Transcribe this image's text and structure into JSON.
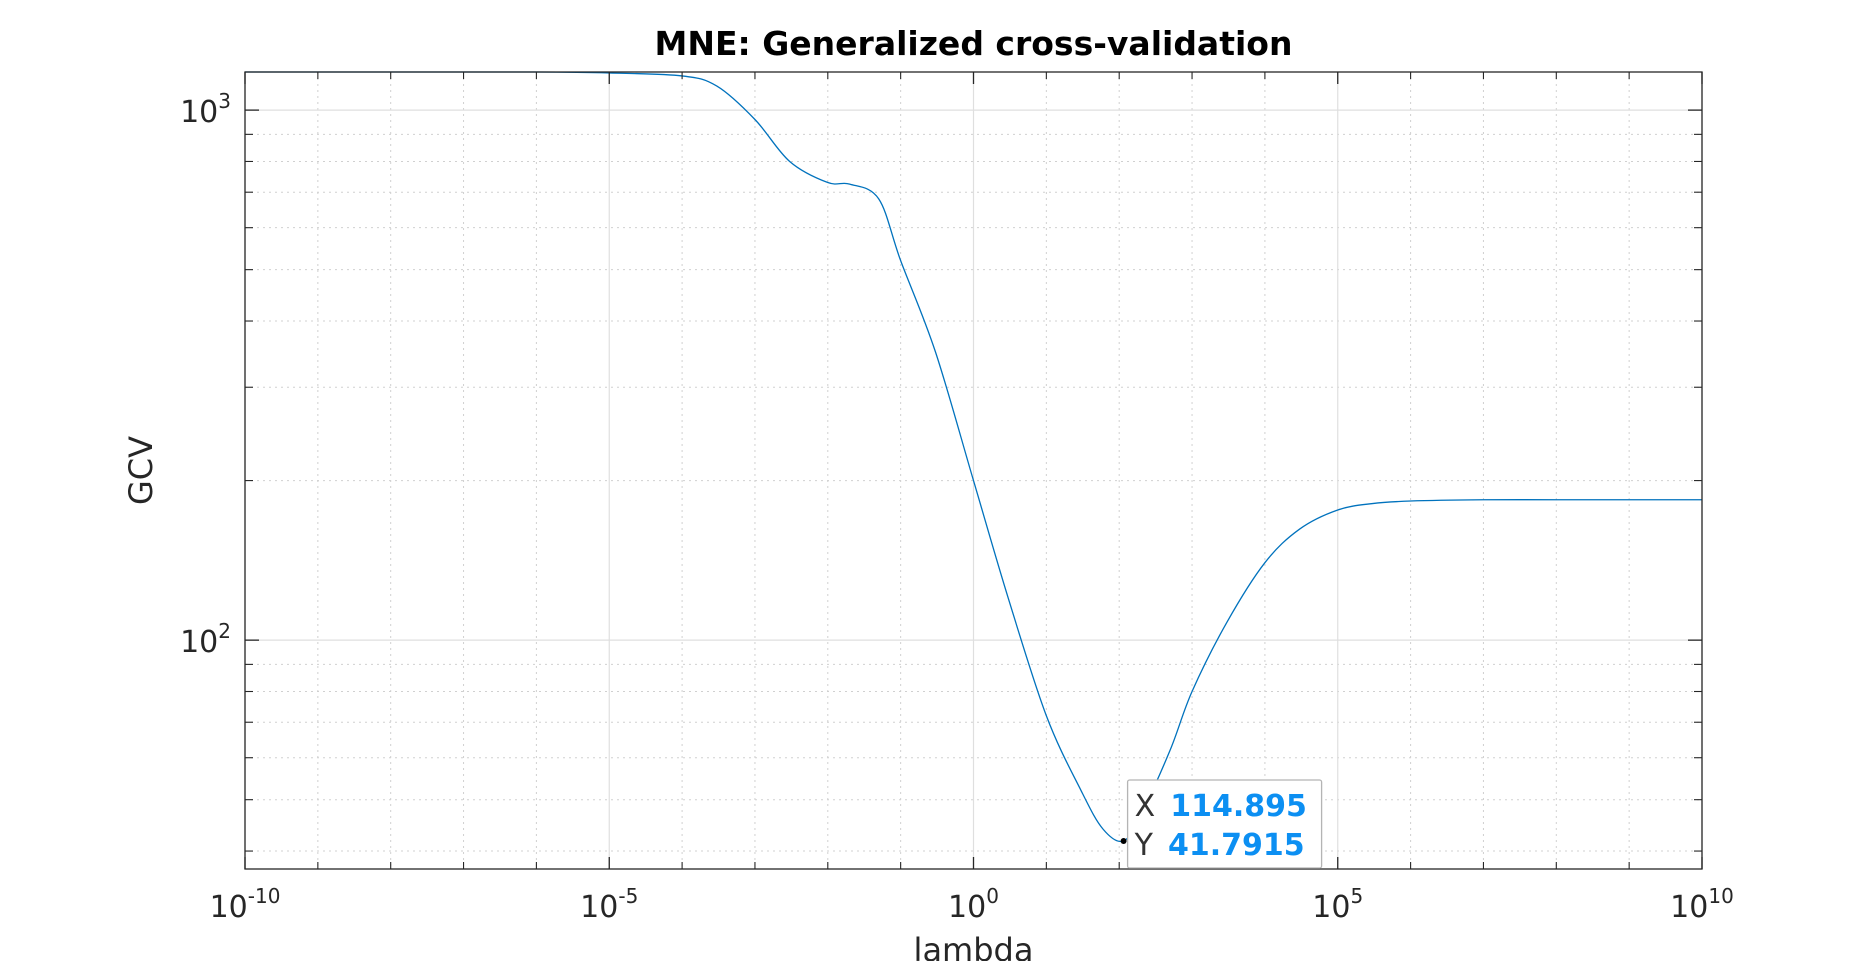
{
  "chart_data": {
    "type": "line",
    "title": "MNE: Generalized cross-validation",
    "xlabel": "lambda",
    "ylabel": "GCV",
    "xscale": "log",
    "yscale": "log",
    "xlim": [
      1e-10,
      10000000000.0
    ],
    "ylim": [
      37,
      1180
    ],
    "grid": true,
    "x_ticks": [
      {
        "base": "10",
        "exp": "-10",
        "value": 1e-10
      },
      {
        "base": "10",
        "exp": "-5",
        "value": 1e-05
      },
      {
        "base": "10",
        "exp": "0",
        "value": 1
      },
      {
        "base": "10",
        "exp": "5",
        "value": 100000.0
      },
      {
        "base": "10",
        "exp": "10",
        "value": 10000000000.0
      }
    ],
    "y_ticks": [
      {
        "base": "10",
        "exp": "2",
        "value": 100
      },
      {
        "base": "10",
        "exp": "3",
        "value": 1000
      }
    ],
    "series": [
      {
        "color": "#0072bd",
        "x": [
          1e-10,
          1e-08,
          1e-06,
          1e-05,
          0.0001,
          0.0003,
          0.001,
          0.003,
          0.01,
          0.02,
          0.05,
          0.1,
          0.3,
          1,
          3,
          10,
          30,
          60,
          114.895,
          200,
          500,
          1000,
          3000,
          10000.0,
          30000.0,
          100000.0,
          300000.0,
          1000000.0,
          10000000.0,
          100000000.0,
          1000000000.0,
          10000000000.0
        ],
        "y": [
          1180,
          1180,
          1180,
          1175,
          1160,
          1110,
          960,
          800,
          730,
          725,
          680,
          520,
          350,
          200,
          120,
          72,
          52,
          44,
          41.7915,
          47,
          62,
          80,
          108,
          140,
          162,
          176,
          181,
          183,
          184,
          184,
          184,
          184
        ]
      }
    ],
    "datatip": {
      "x_key": "X",
      "x_value": "114.895",
      "y_key": "Y",
      "y_value": "41.7915",
      "x": 114.895,
      "y": 41.7915
    }
  }
}
